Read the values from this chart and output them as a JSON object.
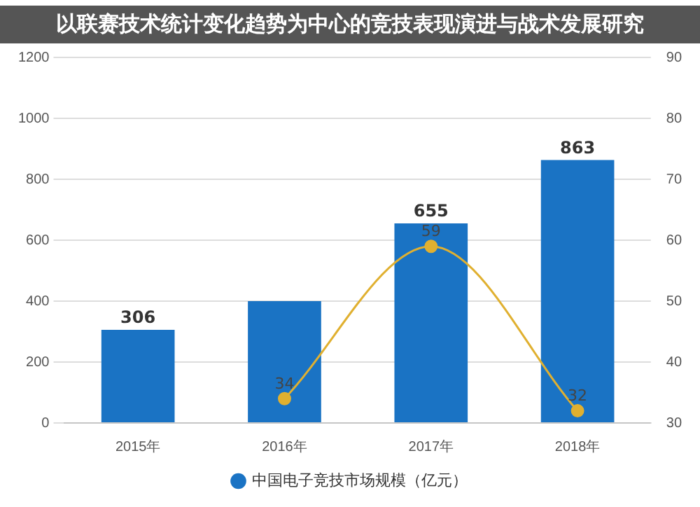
{
  "chart_data": {
    "type": "bar",
    "title": "以联赛技术统计变化趋势为中心的竞技表现演进与战术发展研究",
    "categories": [
      "2015年",
      "2016年",
      "2017年",
      "2018年"
    ],
    "series": [
      {
        "name": "中国电子竞技市场规模（亿元）",
        "color": "#1a73c4",
        "values": [
          306,
          400,
          655,
          863
        ],
        "value_labels": [
          "306",
          null,
          "655",
          "863"
        ]
      },
      {
        "type": "line",
        "axis": "y2",
        "color": "#e0b030",
        "values": [
          null,
          34,
          59,
          32
        ],
        "value_labels": [
          null,
          "34",
          "59",
          "32"
        ]
      }
    ],
    "ylim": [
      0,
      1200
    ],
    "yticks": [
      0,
      200,
      400,
      600,
      800,
      1000,
      1200
    ],
    "y2lim": [
      30,
      90
    ],
    "y2ticks": [
      30,
      40,
      50,
      60,
      70,
      80,
      90
    ],
    "grid": "y",
    "legend": "bottom",
    "marker": "circle"
  }
}
